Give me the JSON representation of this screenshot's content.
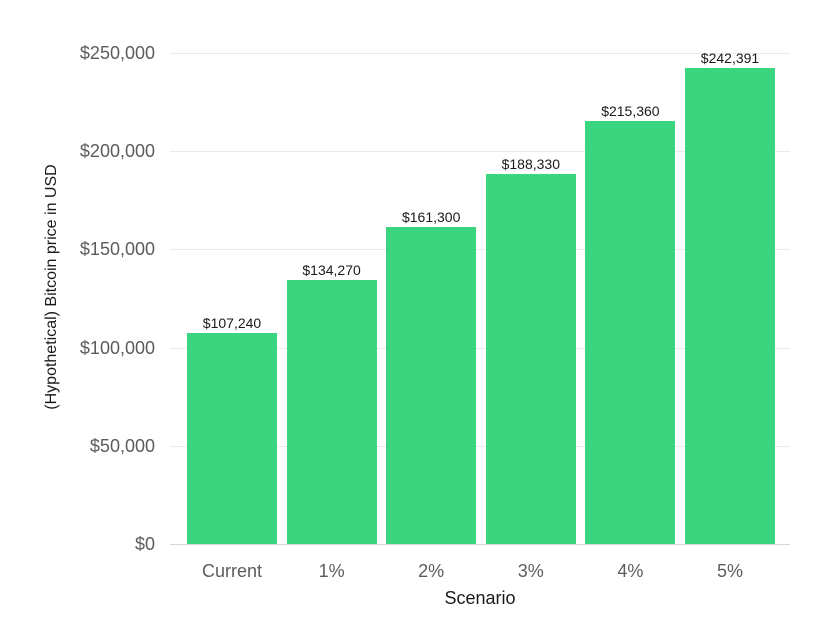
{
  "chart_data": {
    "type": "bar",
    "title": "",
    "xlabel": "Scenario",
    "ylabel": "(Hypothetical) Bitcoin price in USD",
    "categories": [
      "Current",
      "1%",
      "2%",
      "3%",
      "4%",
      "5%"
    ],
    "values": [
      107240,
      134270,
      161300,
      188330,
      215360,
      242391
    ],
    "bar_labels": [
      "$107,240",
      "$134,270",
      "$161,300",
      "$188,330",
      "$215,360",
      "$242,391"
    ],
    "ylim": [
      0,
      250000
    ],
    "yticks": [
      0,
      50000,
      100000,
      150000,
      200000,
      250000
    ],
    "ytick_labels": [
      "$0",
      "$50,000",
      "$100,000",
      "$150,000",
      "$200,000",
      "$250,000"
    ],
    "grid": true,
    "legend": null,
    "colors": {
      "bar": "#3cd57f",
      "gridline": "#eaeaea",
      "baseline": "#d6d6d6",
      "tick_text": "#5c5c5c",
      "value_text": "#1a1a1a",
      "axis_title_text": "#1a1a1a",
      "background": "#ffffff"
    }
  }
}
